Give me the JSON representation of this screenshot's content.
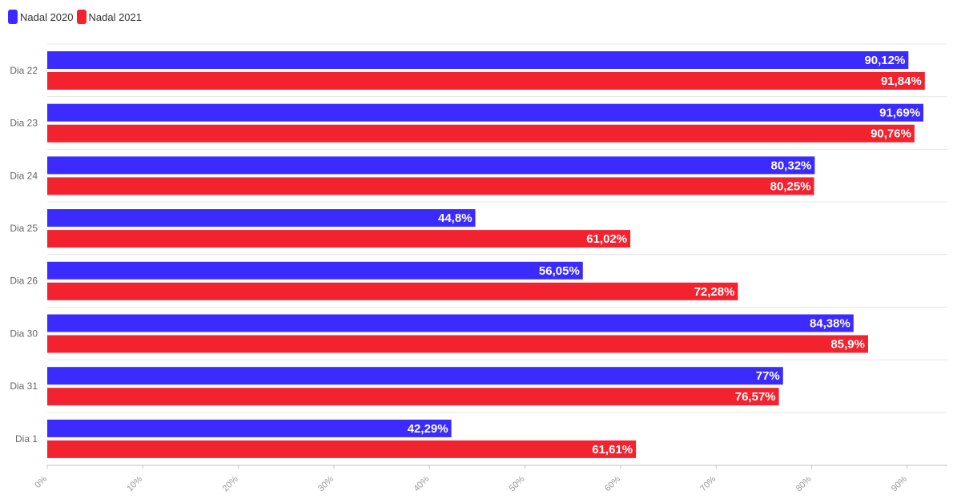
{
  "chart_data": {
    "type": "bar",
    "orientation": "horizontal",
    "categories": [
      "Dia 22",
      "Dia 23",
      "Dia 24",
      "Dia 25",
      "Dia 26",
      "Dia 30",
      "Dia 31",
      "Dia 1"
    ],
    "series": [
      {
        "name": "Nadal 2020",
        "color": "#3b2bff",
        "values": [
          90.12,
          91.69,
          80.32,
          44.8,
          56.05,
          84.38,
          77,
          42.29
        ],
        "labels": [
          "90,12%",
          "91,69%",
          "80,32%",
          "44,8%",
          "56,05%",
          "84,38%",
          "77%",
          "42,29%"
        ]
      },
      {
        "name": "Nadal 2021",
        "color": "#f2232f",
        "values": [
          91.84,
          90.76,
          80.25,
          61.02,
          72.28,
          85.9,
          76.57,
          61.61
        ],
        "labels": [
          "91,84%",
          "90,76%",
          "80,25%",
          "61,02%",
          "72,28%",
          "85,9%",
          "76,57%",
          "61,61%"
        ]
      }
    ],
    "xlim": [
      0,
      95
    ],
    "xticks": [
      0,
      10,
      20,
      30,
      40,
      50,
      60,
      70,
      80,
      90
    ],
    "xtick_labels": [
      "0%",
      "10%",
      "20%",
      "30%",
      "40%",
      "50%",
      "60%",
      "70%",
      "80%",
      "90%"
    ],
    "grid": true,
    "legend_position": "top-left"
  }
}
